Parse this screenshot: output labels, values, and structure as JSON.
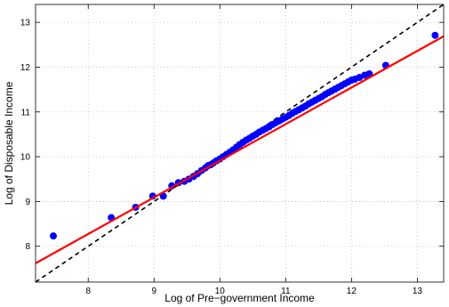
{
  "chart_data": {
    "type": "scatter",
    "title": "",
    "xlabel": "Log of Pre−government Income",
    "ylabel": "Log of Disposable Income",
    "xlim": [
      7.2,
      13.4
    ],
    "ylim": [
      7.2,
      13.4
    ],
    "xticks": [
      8,
      9,
      10,
      11,
      12,
      13
    ],
    "yticks": [
      8,
      9,
      10,
      11,
      12,
      13
    ],
    "xtick_labels": [
      "8",
      "9",
      "10",
      "11",
      "12",
      "13"
    ],
    "ytick_labels": [
      "8",
      "9",
      "10",
      "11",
      "12",
      "13"
    ],
    "grid": true,
    "colors": {
      "points": "#0000ff",
      "fit": "#ff0000",
      "reference": "#000000",
      "grid": "#bfbfbf"
    },
    "series": [
      {
        "kind": "points",
        "x": [
          7.47,
          8.35,
          8.72,
          8.98,
          9.14,
          9.27,
          9.37,
          9.46,
          9.53,
          9.6,
          9.66,
          9.72,
          9.78,
          9.82,
          9.86,
          9.9,
          9.95,
          10.0,
          10.05,
          10.1,
          10.15,
          10.2,
          10.25,
          10.3,
          10.35,
          10.4,
          10.45,
          10.5,
          10.55,
          10.6,
          10.65,
          10.7,
          10.75,
          10.8,
          10.85,
          10.9,
          10.95,
          11.0,
          11.05,
          11.1,
          11.15,
          11.2,
          11.25,
          11.3,
          11.35,
          11.4,
          11.45,
          11.5,
          11.55,
          11.6,
          11.65,
          11.7,
          11.75,
          11.8,
          11.85,
          11.9,
          11.95,
          12.0,
          12.05,
          12.12,
          12.2,
          12.27,
          12.52,
          13.27
        ],
        "y": [
          8.23,
          8.64,
          8.87,
          9.12,
          9.12,
          9.35,
          9.42,
          9.45,
          9.5,
          9.56,
          9.62,
          9.69,
          9.75,
          9.8,
          9.82,
          9.86,
          9.91,
          9.95,
          10.0,
          10.05,
          10.1,
          10.15,
          10.21,
          10.27,
          10.32,
          10.37,
          10.41,
          10.46,
          10.5,
          10.55,
          10.59,
          10.63,
          10.67,
          10.72,
          10.76,
          10.8,
          10.84,
          10.88,
          10.92,
          10.97,
          11.01,
          11.05,
          11.09,
          11.13,
          11.18,
          11.22,
          11.26,
          11.3,
          11.34,
          11.39,
          11.43,
          11.47,
          11.51,
          11.55,
          11.59,
          11.63,
          11.67,
          11.71,
          11.73,
          11.77,
          11.82,
          11.85,
          12.04,
          12.71
        ]
      },
      {
        "kind": "fit_line",
        "x": [
          7.2,
          13.4
        ],
        "y": [
          7.62,
          12.69
        ]
      },
      {
        "kind": "reference_line",
        "x": [
          7.2,
          13.4
        ],
        "y": [
          7.2,
          13.4
        ]
      }
    ]
  }
}
